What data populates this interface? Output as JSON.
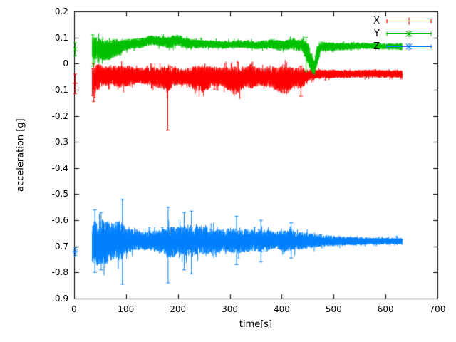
{
  "chart_data": {
    "type": "scatter",
    "style": "errorbars",
    "title": "",
    "xlabel": "time[s]",
    "ylabel": "acceleration [g]",
    "xlim": [
      0,
      700
    ],
    "ylim": [
      -0.9,
      0.2
    ],
    "grid": false,
    "legend_position": "top-right-inside",
    "x_tick_values": [
      0,
      100,
      200,
      300,
      400,
      500,
      600,
      700
    ],
    "x_tick_labels": [
      "0",
      "100",
      "200",
      "300",
      "400",
      "500",
      "600",
      "700"
    ],
    "y_tick_values": [
      -0.9,
      -0.8,
      -0.7,
      -0.6,
      -0.5,
      -0.4,
      -0.3,
      -0.2,
      -0.1,
      0,
      0.1,
      0.2
    ],
    "y_tick_labels": [
      "-0.9",
      "-0.8",
      "-0.7",
      "-0.6",
      "-0.5",
      "-0.4",
      "-0.3",
      "-0.2",
      "-0.1",
      "0",
      "0.1",
      "0.2"
    ],
    "colors": {
      "background": "#ffffff",
      "axis": "#000000",
      "text": "#000000"
    },
    "series": [
      {
        "name": "X",
        "color": "#ff0000",
        "point_style": "plus",
        "start_point": {
          "t": 2,
          "v": -0.075,
          "lo": -0.115,
          "hi": -0.04
        },
        "envelope": [
          [
            35,
            -0.07,
            0.06
          ],
          [
            45,
            -0.05,
            0.05
          ],
          [
            70,
            -0.045,
            0.035
          ],
          [
            90,
            -0.05,
            0.045
          ],
          [
            120,
            -0.045,
            0.03
          ],
          [
            150,
            -0.05,
            0.035
          ],
          [
            175,
            -0.055,
            0.045
          ],
          [
            182,
            -0.06,
            0.06
          ],
          [
            190,
            -0.05,
            0.035
          ],
          [
            215,
            -0.05,
            0.03
          ],
          [
            235,
            -0.055,
            0.05
          ],
          [
            250,
            -0.06,
            0.055
          ],
          [
            265,
            -0.05,
            0.04
          ],
          [
            285,
            -0.05,
            0.035
          ],
          [
            300,
            -0.06,
            0.05
          ],
          [
            315,
            -0.065,
            0.055
          ],
          [
            330,
            -0.05,
            0.04
          ],
          [
            345,
            -0.055,
            0.045
          ],
          [
            360,
            -0.05,
            0.035
          ],
          [
            375,
            -0.05,
            0.04
          ],
          [
            395,
            -0.06,
            0.05
          ],
          [
            410,
            -0.065,
            0.055
          ],
          [
            425,
            -0.05,
            0.035
          ],
          [
            435,
            -0.055,
            0.045
          ],
          [
            450,
            -0.045,
            0.025
          ],
          [
            470,
            -0.04,
            0.018
          ],
          [
            520,
            -0.04,
            0.015
          ],
          [
            570,
            -0.038,
            0.015
          ],
          [
            632,
            -0.04,
            0.015
          ]
        ],
        "spikes": [
          {
            "t": 38,
            "lo": -0.145,
            "hi": 0.0
          },
          {
            "t": 180.5,
            "lo": -0.255,
            "hi": -0.02
          },
          {
            "t": 437,
            "lo": -0.125,
            "hi": -0.01
          }
        ]
      },
      {
        "name": "Y",
        "color": "#00c000",
        "point_style": "times",
        "start_point": {
          "t": 2,
          "v": 0.055,
          "lo": 0.03,
          "hi": 0.08
        },
        "envelope": [
          [
            35,
            0.06,
            0.045
          ],
          [
            50,
            0.055,
            0.04
          ],
          [
            65,
            0.05,
            0.04
          ],
          [
            80,
            0.06,
            0.035
          ],
          [
            95,
            0.07,
            0.025
          ],
          [
            110,
            0.075,
            0.02
          ],
          [
            130,
            0.08,
            0.02
          ],
          [
            150,
            0.09,
            0.018
          ],
          [
            165,
            0.085,
            0.02
          ],
          [
            185,
            0.08,
            0.025
          ],
          [
            200,
            0.09,
            0.02
          ],
          [
            215,
            0.08,
            0.02
          ],
          [
            230,
            0.075,
            0.018
          ],
          [
            260,
            0.075,
            0.015
          ],
          [
            290,
            0.072,
            0.015
          ],
          [
            320,
            0.075,
            0.015
          ],
          [
            350,
            0.07,
            0.015
          ],
          [
            380,
            0.075,
            0.018
          ],
          [
            400,
            0.07,
            0.02
          ],
          [
            420,
            0.075,
            0.02
          ],
          [
            440,
            0.07,
            0.025
          ],
          [
            450,
            0.04,
            0.04
          ],
          [
            458,
            0.0,
            0.04
          ],
          [
            463,
            -0.015,
            0.03
          ],
          [
            468,
            0.03,
            0.04
          ],
          [
            475,
            0.065,
            0.02
          ],
          [
            500,
            0.065,
            0.015
          ],
          [
            560,
            0.068,
            0.012
          ],
          [
            632,
            0.065,
            0.012
          ]
        ],
        "spikes": [
          {
            "t": 36,
            "lo": -0.01,
            "hi": 0.11
          },
          {
            "t": 447,
            "lo": -0.03,
            "hi": 0.1
          }
        ]
      },
      {
        "name": "Z",
        "color": "#0080ff",
        "point_style": "asterisk",
        "start_point": {
          "t": 2,
          "v": -0.72,
          "lo": -0.735,
          "hi": -0.705
        },
        "envelope": [
          [
            35,
            -0.68,
            0.08
          ],
          [
            45,
            -0.69,
            0.09
          ],
          [
            60,
            -0.685,
            0.085
          ],
          [
            75,
            -0.68,
            0.07
          ],
          [
            90,
            -0.68,
            0.08
          ],
          [
            100,
            -0.68,
            0.05
          ],
          [
            115,
            -0.675,
            0.04
          ],
          [
            135,
            -0.68,
            0.035
          ],
          [
            155,
            -0.68,
            0.04
          ],
          [
            175,
            -0.68,
            0.05
          ],
          [
            185,
            -0.685,
            0.06
          ],
          [
            200,
            -0.68,
            0.055
          ],
          [
            215,
            -0.675,
            0.06
          ],
          [
            230,
            -0.68,
            0.06
          ],
          [
            245,
            -0.675,
            0.055
          ],
          [
            260,
            -0.68,
            0.05
          ],
          [
            275,
            -0.68,
            0.045
          ],
          [
            290,
            -0.675,
            0.04
          ],
          [
            310,
            -0.68,
            0.05
          ],
          [
            325,
            -0.68,
            0.045
          ],
          [
            345,
            -0.675,
            0.04
          ],
          [
            365,
            -0.68,
            0.045
          ],
          [
            385,
            -0.675,
            0.035
          ],
          [
            400,
            -0.68,
            0.04
          ],
          [
            415,
            -0.675,
            0.045
          ],
          [
            430,
            -0.68,
            0.035
          ],
          [
            450,
            -0.68,
            0.03
          ],
          [
            470,
            -0.678,
            0.025
          ],
          [
            500,
            -0.68,
            0.02
          ],
          [
            540,
            -0.68,
            0.016
          ],
          [
            580,
            -0.68,
            0.013
          ],
          [
            632,
            -0.68,
            0.012
          ]
        ],
        "spikes": [
          {
            "t": 40,
            "lo": -0.8,
            "hi": -0.56
          },
          {
            "t": 52,
            "lo": -0.79,
            "hi": -0.57
          },
          {
            "t": 93,
            "lo": -0.845,
            "hi": -0.52
          },
          {
            "t": 181,
            "lo": -0.84,
            "hi": -0.55
          },
          {
            "t": 212,
            "lo": -0.79,
            "hi": -0.57
          },
          {
            "t": 226,
            "lo": -0.805,
            "hi": -0.565
          },
          {
            "t": 313,
            "lo": -0.77,
            "hi": -0.585
          },
          {
            "t": 360,
            "lo": -0.76,
            "hi": -0.6
          },
          {
            "t": 418,
            "lo": -0.745,
            "hi": -0.61
          }
        ]
      }
    ]
  }
}
